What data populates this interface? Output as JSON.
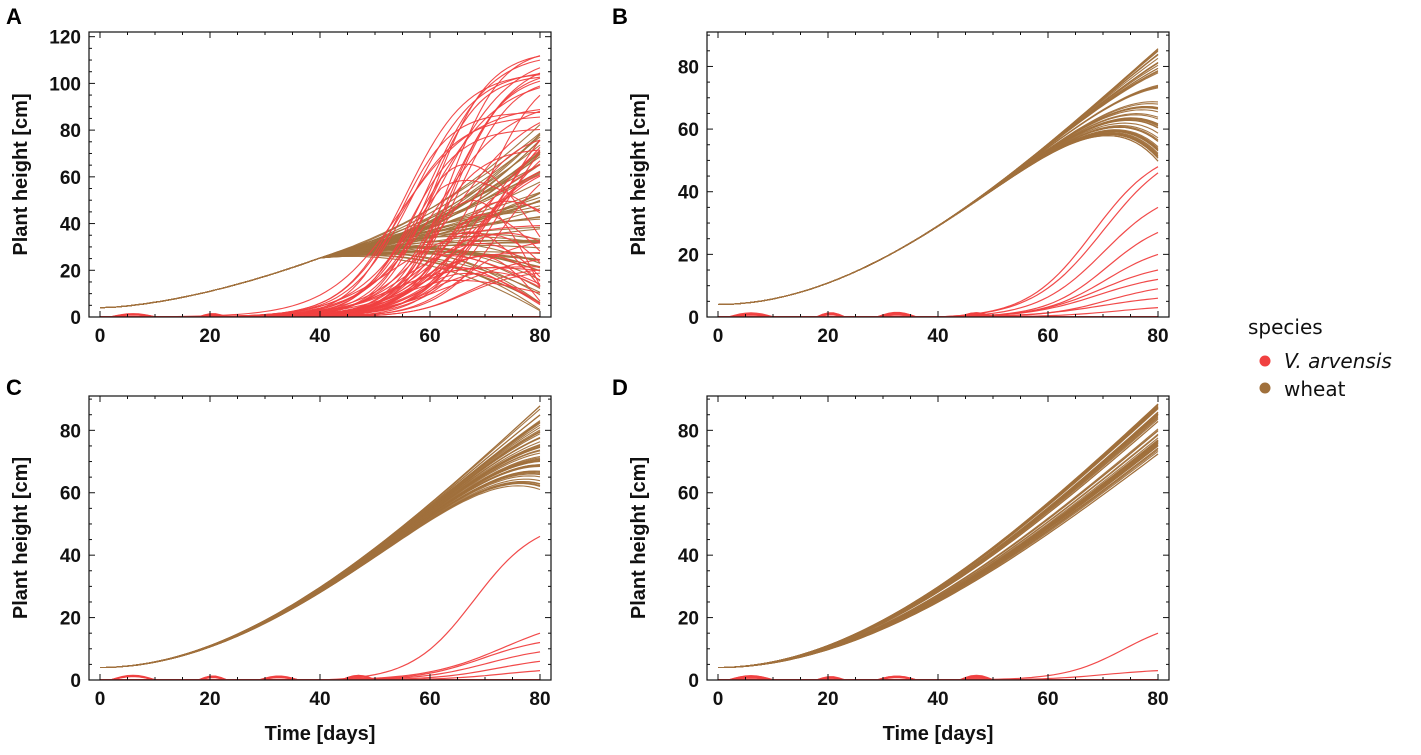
{
  "legend": {
    "title": "species",
    "entries": [
      {
        "name": "V. arvensis",
        "color": "#f04040"
      },
      {
        "name": "wheat",
        "color": "#a0703c"
      }
    ]
  },
  "chart_data": [
    {
      "panel": "A",
      "type": "line",
      "xlabel": "",
      "ylabel": "Plant height [cm]",
      "xlim": [
        -2,
        82
      ],
      "ylim": [
        0,
        122
      ],
      "xticks": [
        0,
        20,
        40,
        60,
        80
      ],
      "yticks": [
        0,
        20,
        40,
        60,
        80,
        100,
        120
      ],
      "wheat_final_range": [
        2,
        84
      ],
      "wheat_diverge_day": 40,
      "weed_final_max": 116,
      "weed_final_min": 5,
      "series": [
        {
          "name": "wheat"
        },
        {
          "name": "V. arvensis"
        }
      ]
    },
    {
      "panel": "B",
      "type": "line",
      "xlabel": "",
      "ylabel": "Plant height [cm]",
      "xlim": [
        -2,
        82
      ],
      "ylim": [
        0,
        91
      ],
      "xticks": [
        0,
        20,
        40,
        60,
        80
      ],
      "yticks": [
        0,
        20,
        40,
        60,
        80
      ],
      "wheat_final_range": [
        49,
        86
      ],
      "weed_final_values": [
        48,
        46,
        35,
        27,
        20,
        15,
        12,
        9,
        6,
        3
      ],
      "series": [
        {
          "name": "wheat"
        },
        {
          "name": "V. arvensis"
        }
      ]
    },
    {
      "panel": "C",
      "type": "line",
      "xlabel": "Time [days]",
      "ylabel": "Plant height [cm]",
      "xlim": [
        -2,
        82
      ],
      "ylim": [
        0,
        91
      ],
      "xticks": [
        0,
        20,
        40,
        60,
        80
      ],
      "yticks": [
        0,
        20,
        40,
        60,
        80
      ],
      "wheat_final_range": [
        61,
        88
      ],
      "weed_final_values": [
        46,
        15,
        12,
        9,
        6,
        3
      ],
      "series": [
        {
          "name": "wheat"
        },
        {
          "name": "V. arvensis"
        }
      ]
    },
    {
      "panel": "D",
      "type": "line",
      "xlabel": "Time [days]",
      "ylabel": "Plant height [cm]",
      "xlim": [
        -2,
        82
      ],
      "ylim": [
        0,
        91
      ],
      "xticks": [
        0,
        20,
        40,
        60,
        80
      ],
      "yticks": [
        0,
        20,
        40,
        60,
        80
      ],
      "wheat_final_range": [
        72,
        89
      ],
      "weed_final_values": [
        15,
        3
      ],
      "series": [
        {
          "name": "wheat"
        },
        {
          "name": "V. arvensis"
        }
      ]
    }
  ]
}
